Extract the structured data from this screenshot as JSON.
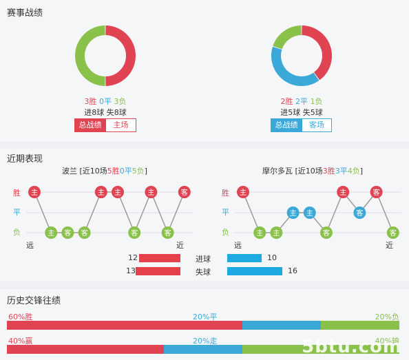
{
  "sections": {
    "record_title": "赛事战绩",
    "recent_title": "近期表现",
    "history_title": "历史交锋往绩"
  },
  "colors": {
    "win": "#e04352",
    "draw": "#3aa9d8",
    "loss": "#8ac14a"
  },
  "home": {
    "wins": "3胜",
    "draws": "0平",
    "losses": "3负",
    "wins_n": 3,
    "draws_n": 0,
    "losses_n": 3,
    "goals_for": "进8球",
    "goals_against": "失8球",
    "btn_total": "总战绩",
    "btn_venue": "主场"
  },
  "away": {
    "wins": "2胜",
    "draws": "2平",
    "losses": "1负",
    "wins_n": 2,
    "draws_n": 2,
    "losses_n": 1,
    "goals_for": "进5球",
    "goals_against": "失5球",
    "btn_total": "总战绩",
    "btn_venue": "客场"
  },
  "recent": {
    "row_labels": {
      "win": "胜",
      "draw": "平",
      "loss": "负"
    },
    "far": "远",
    "near": "近",
    "home": {
      "team": "波兰",
      "summary_prefix": " [近10场",
      "w": "5胜",
      "d": "0平",
      "l": "5负",
      "suffix": "]",
      "results": [
        "W",
        "L",
        "L",
        "L",
        "W",
        "W",
        "L",
        "W",
        "L",
        "W"
      ],
      "venues": [
        "主",
        "主",
        "客",
        "客",
        "主",
        "主",
        "客",
        "主",
        "客",
        "客"
      ]
    },
    "away": {
      "team": "摩尔多瓦",
      "summary_prefix": " [近10场",
      "w": "3胜",
      "d": "3平",
      "l": "4负",
      "suffix": "]",
      "results": [
        "W",
        "L",
        "L",
        "D",
        "D",
        "L",
        "W",
        "D",
        "W",
        "L"
      ],
      "venues": [
        "主",
        "主",
        "主",
        "主",
        "主",
        "客",
        "主",
        "客",
        "客",
        "客"
      ]
    },
    "bars": {
      "scored_label": "进球",
      "conceded_label": "失球",
      "home_scored": 12,
      "home_conceded": 13,
      "away_scored": 10,
      "away_conceded": 16
    }
  },
  "history": {
    "row1": {
      "left": "60%胜",
      "mid": "20%平",
      "right": "20%负",
      "a": 60,
      "b": 20,
      "c": 20
    },
    "row2": {
      "left": "40%赢",
      "mid": "20%走",
      "right": "40%输",
      "a": 40,
      "b": 20,
      "c": 40
    }
  },
  "watermark": "5btu.com"
}
